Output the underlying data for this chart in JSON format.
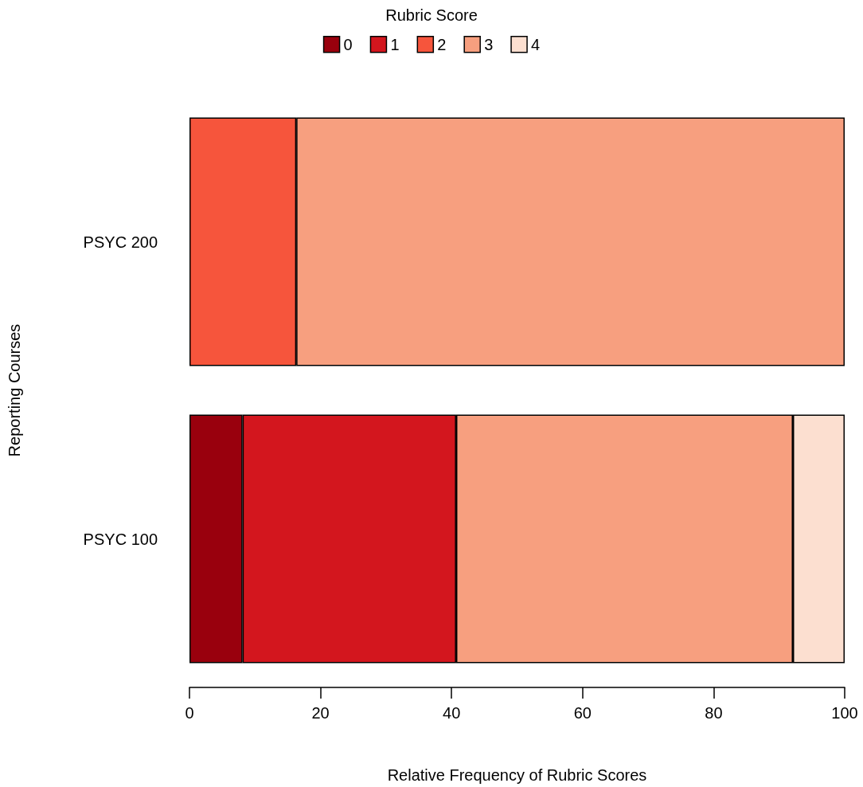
{
  "chart_data": {
    "type": "bar",
    "orientation": "horizontal",
    "stacked": true,
    "xlabel": "Relative Frequency of Rubric Scores",
    "ylabel": "Reporting Courses",
    "legend_title": "Rubric Score",
    "legend": "top",
    "categories": [
      "PSYC 200",
      "PSYC 100"
    ],
    "series": [
      {
        "name": "0",
        "color": "#99000d",
        "values": [
          null,
          8.1
        ]
      },
      {
        "name": "1",
        "color": "#d3161e",
        "values": [
          null,
          32.6
        ]
      },
      {
        "name": "2",
        "color": "#f6553c",
        "values": [
          16.3,
          null
        ]
      },
      {
        "name": "3",
        "color": "#f79f7f",
        "values": [
          83.7,
          51.4
        ]
      },
      {
        "name": "4",
        "color": "#fcdfd0",
        "values": [
          null,
          7.9
        ]
      }
    ],
    "xlim": [
      0,
      100
    ],
    "xticks": [
      0,
      20,
      40,
      60,
      80,
      100
    ]
  }
}
